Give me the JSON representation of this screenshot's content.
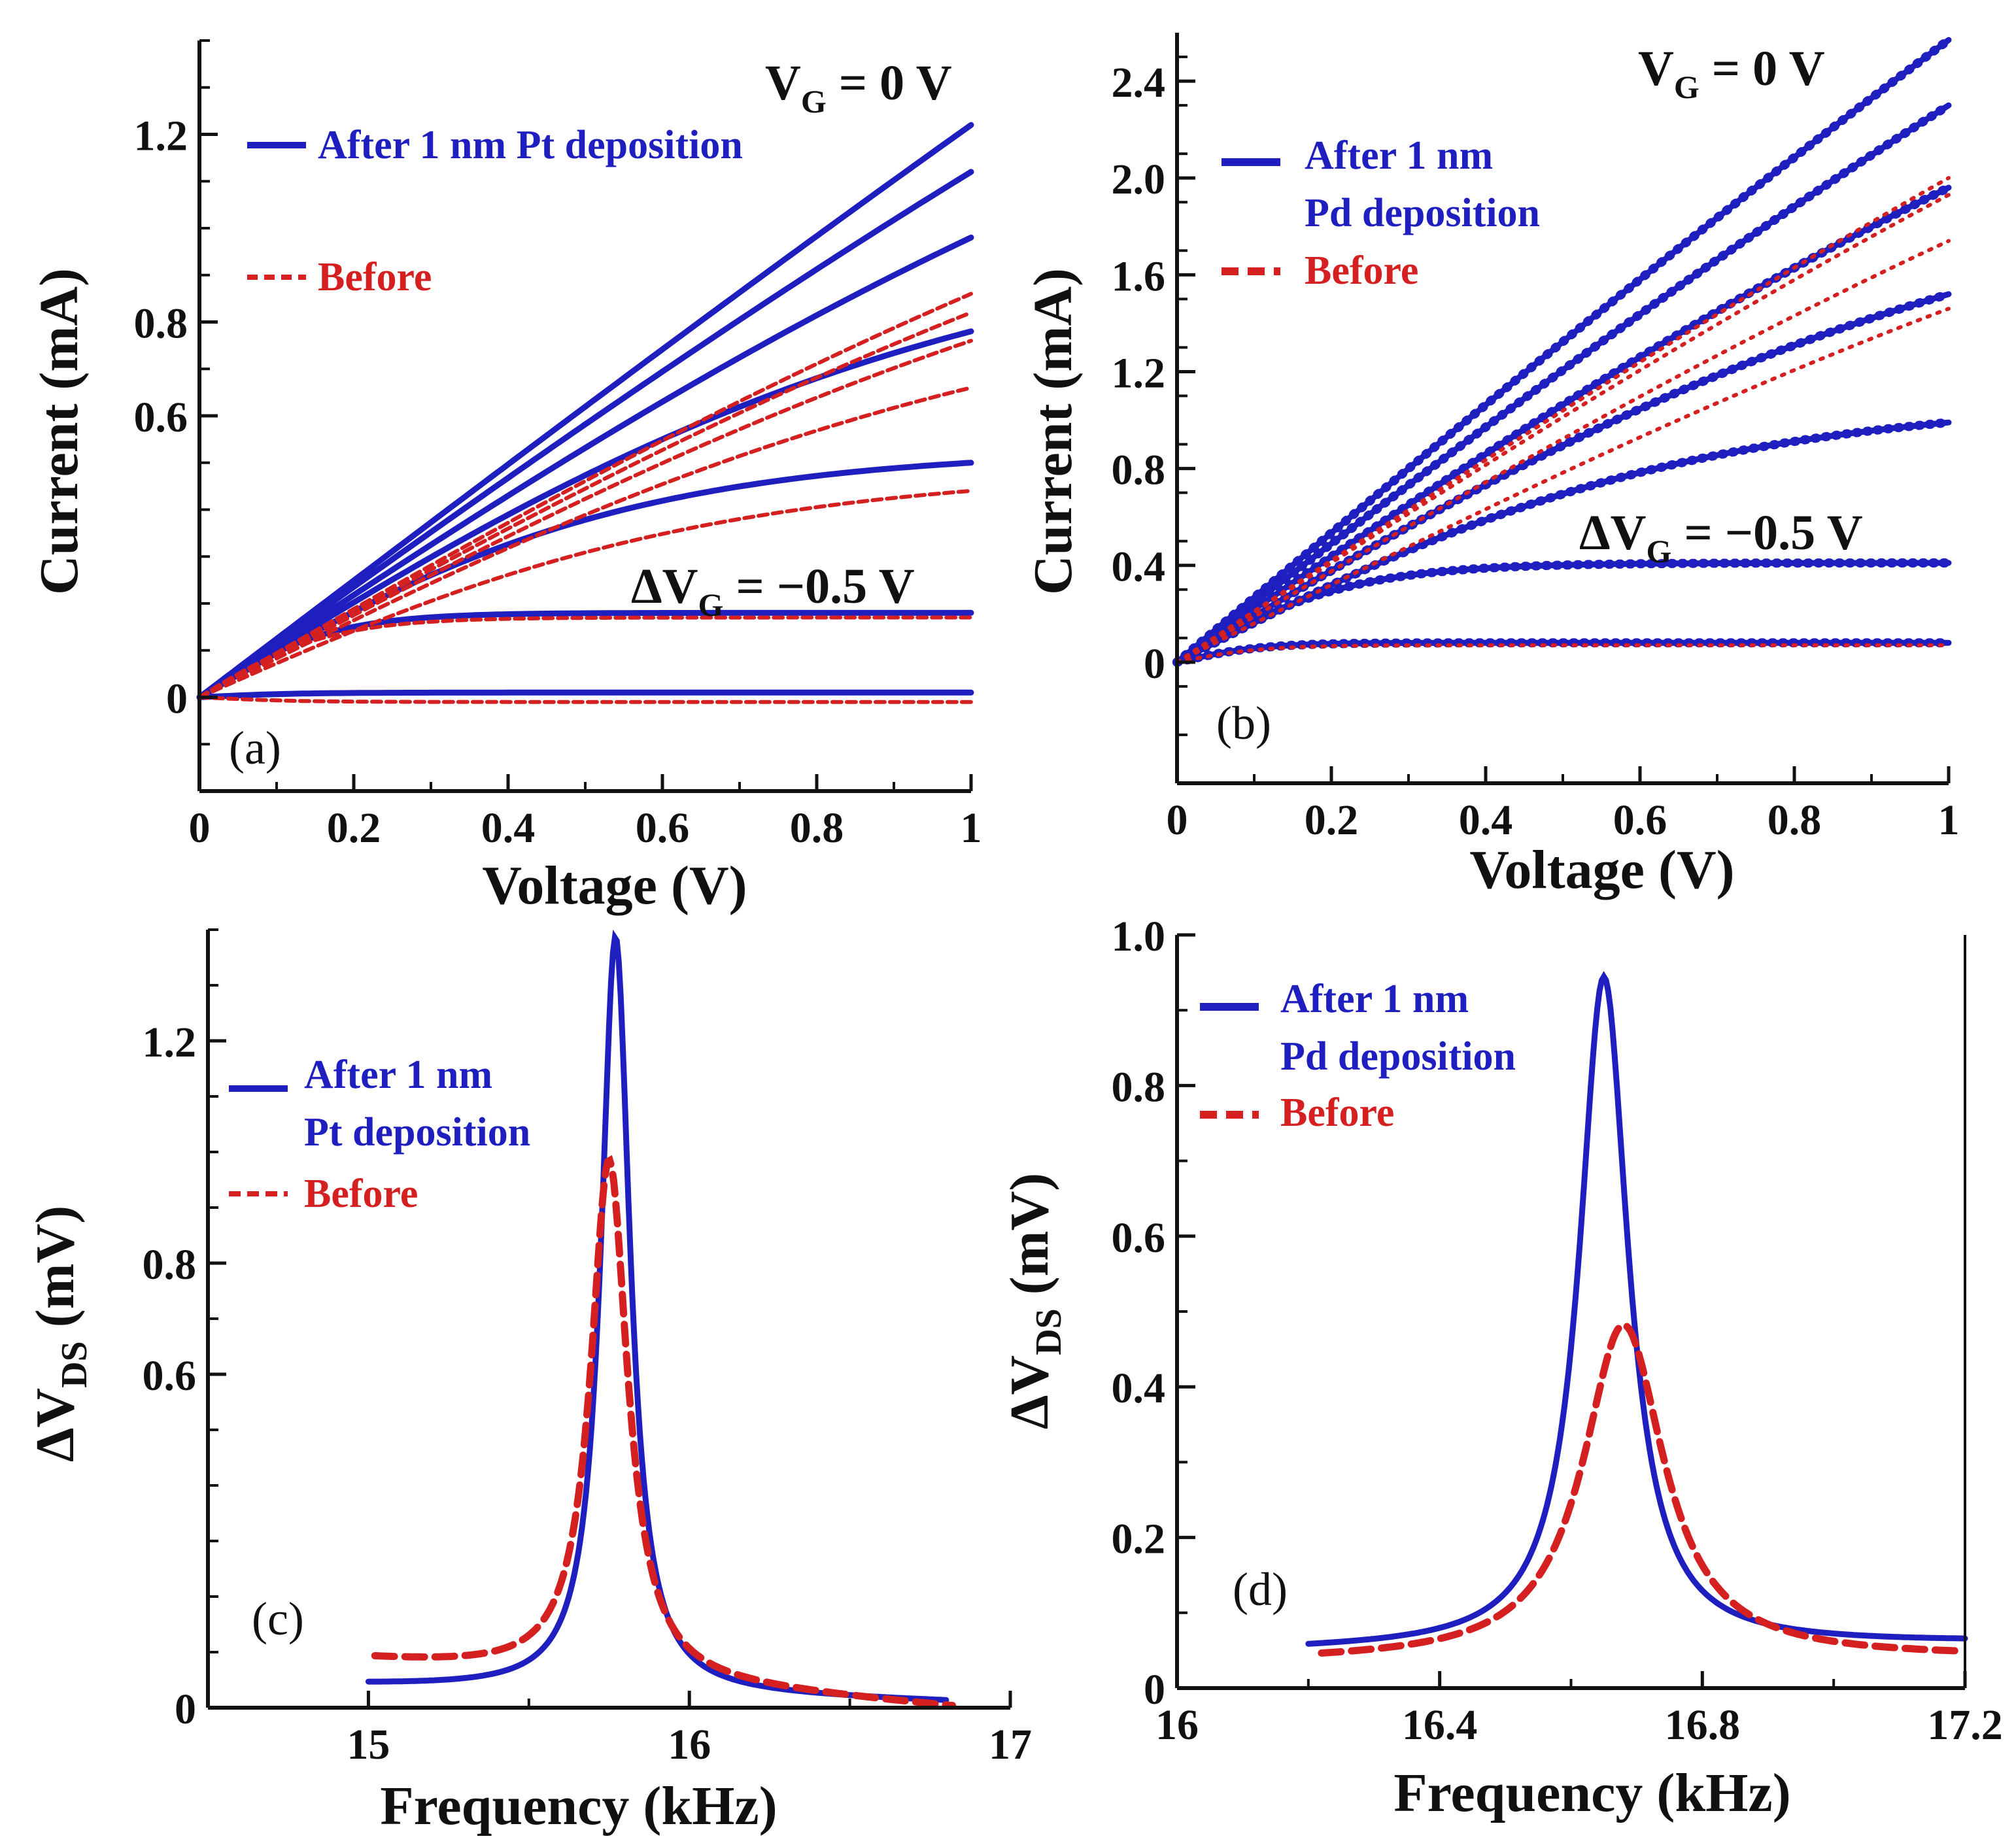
{
  "colors": {
    "after": "#1f1fc0",
    "before": "#d42020",
    "axis": "#111111"
  },
  "chart_data": [
    {
      "panel": "(a)",
      "type": "line",
      "xlabel": "Voltage (V)",
      "ylabel": "Current (mA)",
      "xlim": [
        0,
        1
      ],
      "ylim": [
        -0.2,
        1.4
      ],
      "xticks": [
        0,
        0.2,
        0.4,
        0.6,
        0.8,
        1
      ],
      "xtick_labels": [
        "0",
        "0.2",
        "0.4",
        "0.6",
        "0.8",
        "1"
      ],
      "yticks": [
        0,
        0.6,
        0.8,
        1.2
      ],
      "ytick_labels": [
        "0",
        "0.6",
        "0.8",
        "1.2"
      ],
      "legend": [
        "After 1 nm Pt deposition",
        "Before"
      ],
      "legend_position": "top-left",
      "annotations": {
        "top": "V_G = 0 V",
        "bottom": "ΔV_G = −0.5 V"
      },
      "series": [
        {
          "group": "after",
          "style": "solid",
          "end": 1.22,
          "k": 0.25
        },
        {
          "group": "after",
          "style": "solid",
          "end": 1.12,
          "k": 0.4
        },
        {
          "group": "after",
          "style": "solid",
          "end": 0.98,
          "k": 0.6
        },
        {
          "group": "after",
          "style": "solid",
          "end": 0.78,
          "k": 1.0
        },
        {
          "group": "after",
          "style": "solid",
          "end": 0.5,
          "k": 1.8
        },
        {
          "group": "after",
          "style": "solid",
          "end": 0.18,
          "k": 6.0
        },
        {
          "group": "after",
          "style": "solid",
          "end": 0.01,
          "k": 8.0
        },
        {
          "group": "before",
          "style": "dashed",
          "end": 0.86,
          "k": 0.55
        },
        {
          "group": "before",
          "style": "dashed",
          "end": 0.82,
          "k": 0.6
        },
        {
          "group": "before",
          "style": "dashed",
          "end": 0.76,
          "k": 0.7
        },
        {
          "group": "before",
          "style": "dashed",
          "end": 0.66,
          "k": 0.9
        },
        {
          "group": "before",
          "style": "dashed",
          "end": 0.44,
          "k": 1.5
        },
        {
          "group": "before",
          "style": "dashed",
          "end": 0.17,
          "k": 6.0
        },
        {
          "group": "before",
          "style": "dashed",
          "end": -0.01,
          "k": 8.0
        }
      ]
    },
    {
      "panel": "(b)",
      "type": "line",
      "xlabel": "Voltage (V)",
      "ylabel": "Current (mA)",
      "xlim": [
        0,
        1
      ],
      "ylim": [
        -0.5,
        2.6
      ],
      "xticks": [
        0,
        0.2,
        0.4,
        0.6,
        0.8,
        1
      ],
      "xtick_labels": [
        "0",
        "0.2",
        "0.4",
        "0.6",
        "0.8",
        "1"
      ],
      "yticks": [
        0,
        0.4,
        0.8,
        1.2,
        1.6,
        2.0,
        2.4
      ],
      "ytick_labels": [
        "0",
        "0.4",
        "0.8",
        "1.2",
        "1.6",
        "2.0",
        "2.4"
      ],
      "legend": [
        "After 1 nm",
        "Pd deposition",
        "Before"
      ],
      "legend_position": "top-left",
      "annotations": {
        "top": "V_G = 0 V",
        "bottom": "ΔV_G = −0.5 V"
      },
      "series": [
        {
          "group": "after",
          "style": "solid-dotted",
          "end": 2.57,
          "k": 0.35
        },
        {
          "group": "after",
          "style": "solid-dotted",
          "end": 2.3,
          "k": 0.45
        },
        {
          "group": "after",
          "style": "solid-dotted",
          "end": 1.96,
          "k": 0.6
        },
        {
          "group": "after",
          "style": "solid-dotted",
          "end": 1.52,
          "k": 0.9
        },
        {
          "group": "after",
          "style": "solid-dotted",
          "end": 0.99,
          "k": 1.5
        },
        {
          "group": "after",
          "style": "solid-dotted",
          "end": 0.41,
          "k": 4.5
        },
        {
          "group": "after",
          "style": "solid-dotted",
          "end": 0.08,
          "k": 9.0
        },
        {
          "group": "before",
          "style": "dotted",
          "end": 2.0,
          "k": 0.4
        },
        {
          "group": "before",
          "style": "dotted",
          "end": 1.93,
          "k": 0.45
        },
        {
          "group": "before",
          "style": "dotted",
          "end": 1.74,
          "k": 0.5
        },
        {
          "group": "before",
          "style": "dotted",
          "end": 1.46,
          "k": 0.55
        },
        {
          "group": "before",
          "style": "dotted",
          "end": 0.07,
          "k": 9.0
        }
      ]
    },
    {
      "panel": "(c)",
      "type": "line",
      "xlabel": "Frequency (kHz)",
      "ylabel": "ΔV_DS (mV)",
      "xlim": [
        14.5,
        17
      ],
      "ylim": [
        0,
        1.4
      ],
      "xticks": [
        15,
        16,
        17
      ],
      "xtick_labels": [
        "15",
        "16",
        "17"
      ],
      "yticks": [
        0,
        0.6,
        0.8,
        1.2
      ],
      "ytick_labels": [
        "0",
        "0.6",
        "0.8",
        "1.2"
      ],
      "legend": [
        "After 1 nm",
        "Pt deposition",
        "Before"
      ],
      "legend_position": "top-left",
      "series": [
        {
          "group": "after",
          "style": "solid",
          "x_start": 15.0,
          "x_end": 16.8,
          "peak_x": 15.77,
          "peak": 1.4,
          "width": 0.055,
          "base": 0.04,
          "end_value": 0.01
        },
        {
          "group": "before",
          "style": "dashed",
          "x_start": 15.02,
          "x_end": 16.82,
          "peak_x": 15.75,
          "peak": 1.02,
          "width": 0.07,
          "base": 0.085,
          "end_value": 0.0
        }
      ]
    },
    {
      "panel": "(d)",
      "type": "line",
      "xlabel": "Frequency (kHz)",
      "ylabel": "ΔV_DS (mV)",
      "xlim": [
        16,
        17.2
      ],
      "ylim": [
        0,
        1.0
      ],
      "xticks": [
        16,
        16.4,
        16.8,
        17.2
      ],
      "xtick_labels": [
        "16",
        "16.4",
        "16.8",
        "17.2"
      ],
      "yticks": [
        0,
        0.2,
        0.4,
        0.6,
        0.8,
        1.0
      ],
      "ytick_labels": [
        "0",
        "0.2",
        "0.4",
        "0.6",
        "0.8",
        "1.0"
      ],
      "legend": [
        "After 1 nm",
        "Pd deposition",
        "Before"
      ],
      "legend_position": "top-left",
      "series": [
        {
          "group": "after",
          "style": "solid",
          "x_start": 16.2,
          "x_end": 17.2,
          "peak_x": 16.65,
          "peak": 0.94,
          "width": 0.045,
          "base": 0.05,
          "end_value": 0.06
        },
        {
          "group": "before",
          "style": "dashed",
          "x_start": 16.22,
          "x_end": 17.2,
          "peak_x": 16.68,
          "peak": 0.48,
          "width": 0.075,
          "base": 0.035,
          "end_value": 0.04
        }
      ]
    }
  ]
}
